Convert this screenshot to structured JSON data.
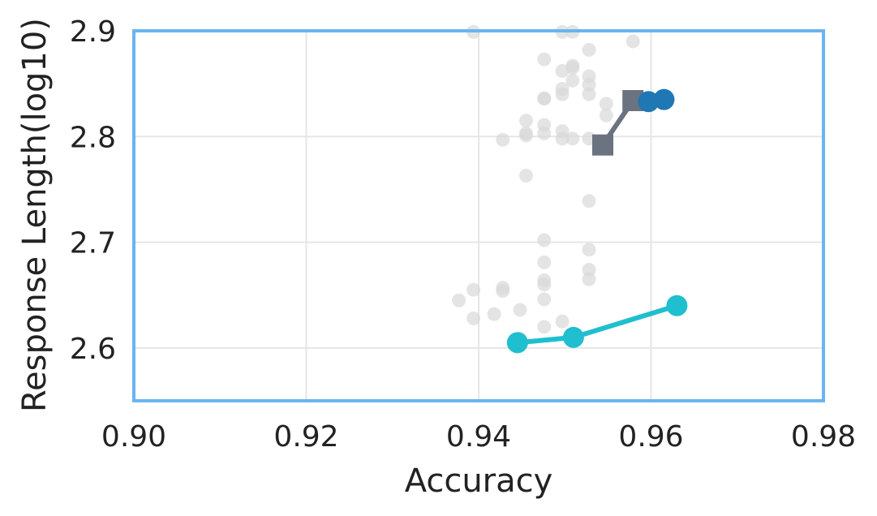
{
  "chart_data": {
    "type": "scatter",
    "title": "",
    "xlabel": "Accuracy",
    "ylabel": "Response Length(log10)",
    "xlim": [
      0.9,
      0.98
    ],
    "ylim": [
      2.55,
      2.9
    ],
    "x_ticks": [
      0.9,
      0.92,
      0.94,
      0.96,
      0.98
    ],
    "x_tick_labels": [
      "0.90",
      "0.92",
      "0.94",
      "0.96",
      "0.98"
    ],
    "y_ticks": [
      2.6,
      2.7,
      2.8,
      2.9
    ],
    "y_tick_labels": [
      "2.6",
      "2.7",
      "2.8",
      "2.9"
    ],
    "grid": true,
    "legend": "none",
    "frame_color": "#6ab4f0",
    "background_points": {
      "color": "#d9d9d9",
      "x": [
        0.9394,
        0.9497,
        0.9509,
        0.9579,
        0.9528,
        0.9476,
        0.9509,
        0.9509,
        0.9497,
        0.9528,
        0.9509,
        0.9497,
        0.9528,
        0.9528,
        0.9497,
        0.9476,
        0.9476,
        0.9548,
        0.9548,
        0.9455,
        0.9476,
        0.9455,
        0.9476,
        0.9497,
        0.9455,
        0.9497,
        0.9509,
        0.9528,
        0.9428,
        0.9455,
        0.9528,
        0.9476,
        0.9528,
        0.9476,
        0.9528,
        0.9528,
        0.9476,
        0.9476,
        0.9394,
        0.9428,
        0.9428,
        0.9377,
        0.9476,
        0.9418,
        0.9448,
        0.9394,
        0.9497,
        0.9476,
        0.9448
      ],
      "y": [
        2.899,
        2.899,
        2.899,
        2.89,
        2.882,
        2.873,
        2.867,
        2.865,
        2.862,
        2.857,
        2.853,
        2.845,
        2.849,
        2.84,
        2.84,
        2.836,
        2.836,
        2.831,
        2.82,
        2.815,
        2.811,
        2.803,
        2.803,
        2.805,
        2.801,
        2.798,
        2.798,
        2.798,
        2.797,
        2.763,
        2.739,
        2.702,
        2.693,
        2.681,
        2.674,
        2.665,
        2.664,
        2.66,
        2.655,
        2.657,
        2.654,
        2.645,
        2.646,
        2.632,
        2.636,
        2.628,
        2.625,
        2.62,
        2.609
      ]
    },
    "series": [
      {
        "color": "#1fbfcf",
        "marker": "circle",
        "x": [
          0.9445,
          0.951,
          0.963
        ],
        "y": [
          2.605,
          2.61,
          2.64
        ]
      },
      {
        "color": "#6b7280",
        "marker": "square",
        "x": [
          0.9544,
          0.9579
        ],
        "y": [
          2.792,
          2.834
        ]
      },
      {
        "color": "#1f77b4",
        "marker": "circle",
        "x": [
          0.9597,
          0.9615
        ],
        "y": [
          2.833,
          2.835
        ]
      }
    ]
  }
}
